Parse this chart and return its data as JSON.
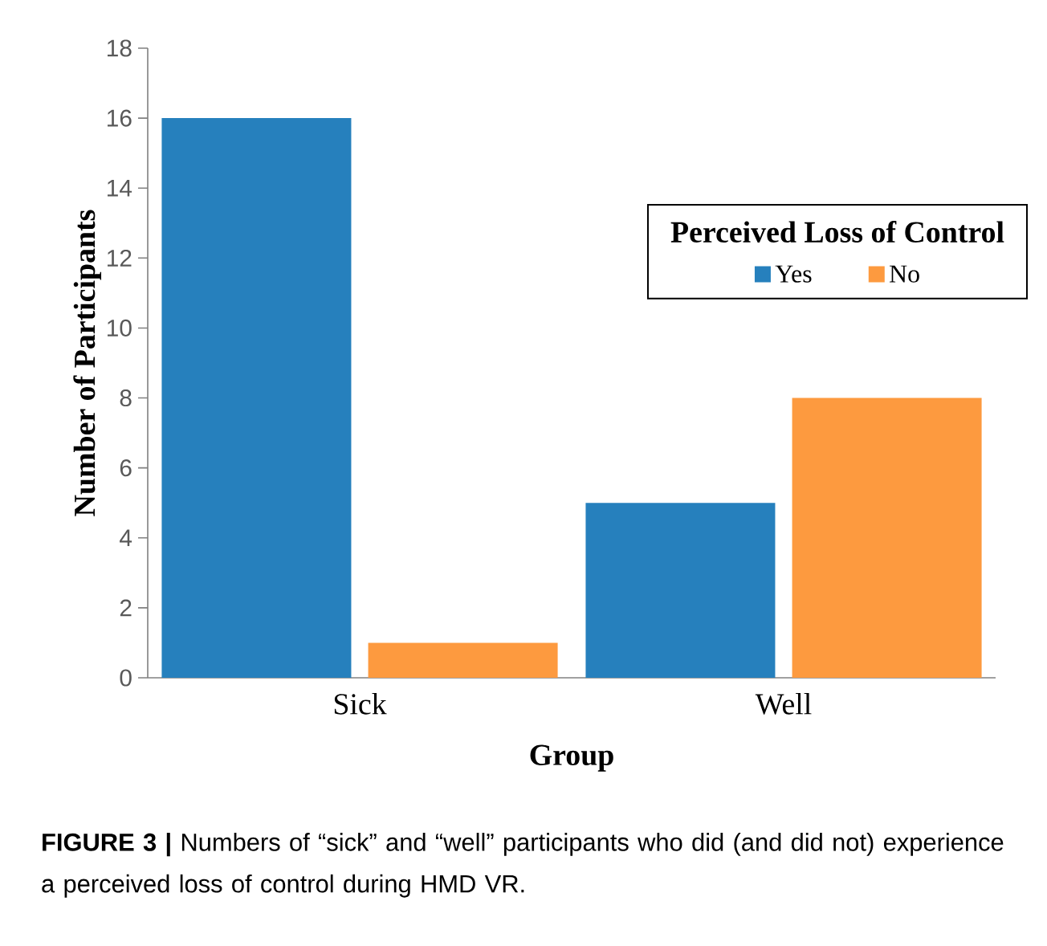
{
  "chart_data": {
    "type": "bar",
    "xlabel": "Group",
    "ylabel": "Number of Participants",
    "legend_title": "Perceived Loss of Control",
    "categories": [
      "Sick",
      "Well"
    ],
    "series": [
      {
        "name": "Yes",
        "color": "#2680bd",
        "values": [
          16,
          5
        ]
      },
      {
        "name": "No",
        "color": "#fd9a3f",
        "values": [
          1,
          8
        ]
      }
    ],
    "ylim": [
      0,
      18
    ],
    "yticks": [
      0,
      2,
      4,
      6,
      8,
      10,
      12,
      14,
      16,
      18
    ],
    "legend": "top right",
    "annotations": [
      "**FIGURE 3 |** Numbers of “sick” and “well” participants who did (and did not) experience a perceived loss of control during HMD VR."
    ]
  }
}
